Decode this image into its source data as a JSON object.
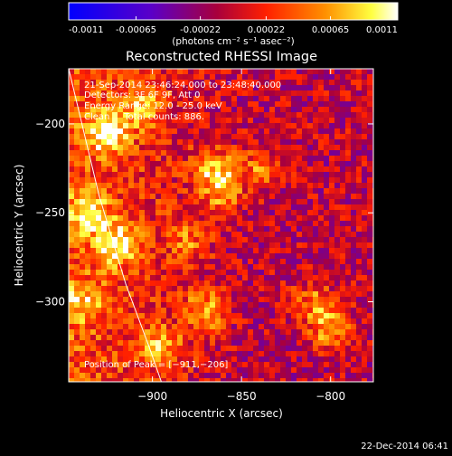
{
  "chart_data": {
    "type": "heatmap",
    "title": "Reconstructed RHESSI Image",
    "colorbar": {
      "range": [
        -0.0011,
        0.0011
      ],
      "ticks": [
        "-0.0011",
        "-0.00065",
        "-0.00022",
        "0.00022",
        "0.00065",
        "0.0011"
      ],
      "unit_label": "(photons cm⁻² s⁻¹ asec⁻²)",
      "colormap": "rainbow (blue-purple-red-orange-yellow-white)"
    },
    "xlabel": "Heliocentric X (arcsec)",
    "ylabel": "Heliocentric Y (arcsec)",
    "xlim": [
      -947,
      -776
    ],
    "ylim": [
      -345,
      -169
    ],
    "xticks": [
      -900,
      -850,
      -800
    ],
    "yticks": [
      -200,
      -250,
      -300
    ],
    "xtick_labels": [
      "−900",
      "−850",
      "−800"
    ],
    "ytick_labels": [
      "−200",
      "−250",
      "−300"
    ],
    "annotations": [
      "21-Sep-2014 23:46:24.000 to 23:48:40.000",
      "Detectors: 3F 6F 9F, Att 0",
      "Energy Range: 12.0 - 25.0 keV",
      "Clean     Total counts: 886."
    ],
    "peak_label": "Position of Peak = [−911,−206]",
    "peak": [
      -911,
      -206
    ],
    "limb_curve": [
      [
        -947,
        -169
      ],
      [
        -930,
        -240
      ],
      [
        -915,
        -290
      ],
      [
        -902,
        -325
      ],
      [
        -895,
        -345
      ]
    ],
    "hotspots": [
      {
        "x": -925,
        "y": -205,
        "value": 0.0011
      },
      {
        "x": -920,
        "y": -268,
        "value": 0.00095
      },
      {
        "x": -935,
        "y": -250,
        "value": 0.0008
      },
      {
        "x": -905,
        "y": -190,
        "value": 0.0007
      },
      {
        "x": -865,
        "y": -225,
        "value": 0.0008
      },
      {
        "x": -860,
        "y": -238,
        "value": 0.0007
      },
      {
        "x": -840,
        "y": -225,
        "value": 0.0006
      },
      {
        "x": -870,
        "y": -305,
        "value": 0.00075
      },
      {
        "x": -800,
        "y": -315,
        "value": 0.00085
      },
      {
        "x": -810,
        "y": -300,
        "value": 0.0006
      },
      {
        "x": -895,
        "y": -325,
        "value": 0.00065
      },
      {
        "x": -940,
        "y": -300,
        "value": 0.0006
      },
      {
        "x": -880,
        "y": -265,
        "value": 0.0005
      }
    ]
  },
  "footer": {
    "timestamp": "22-Dec-2014 06:41"
  }
}
